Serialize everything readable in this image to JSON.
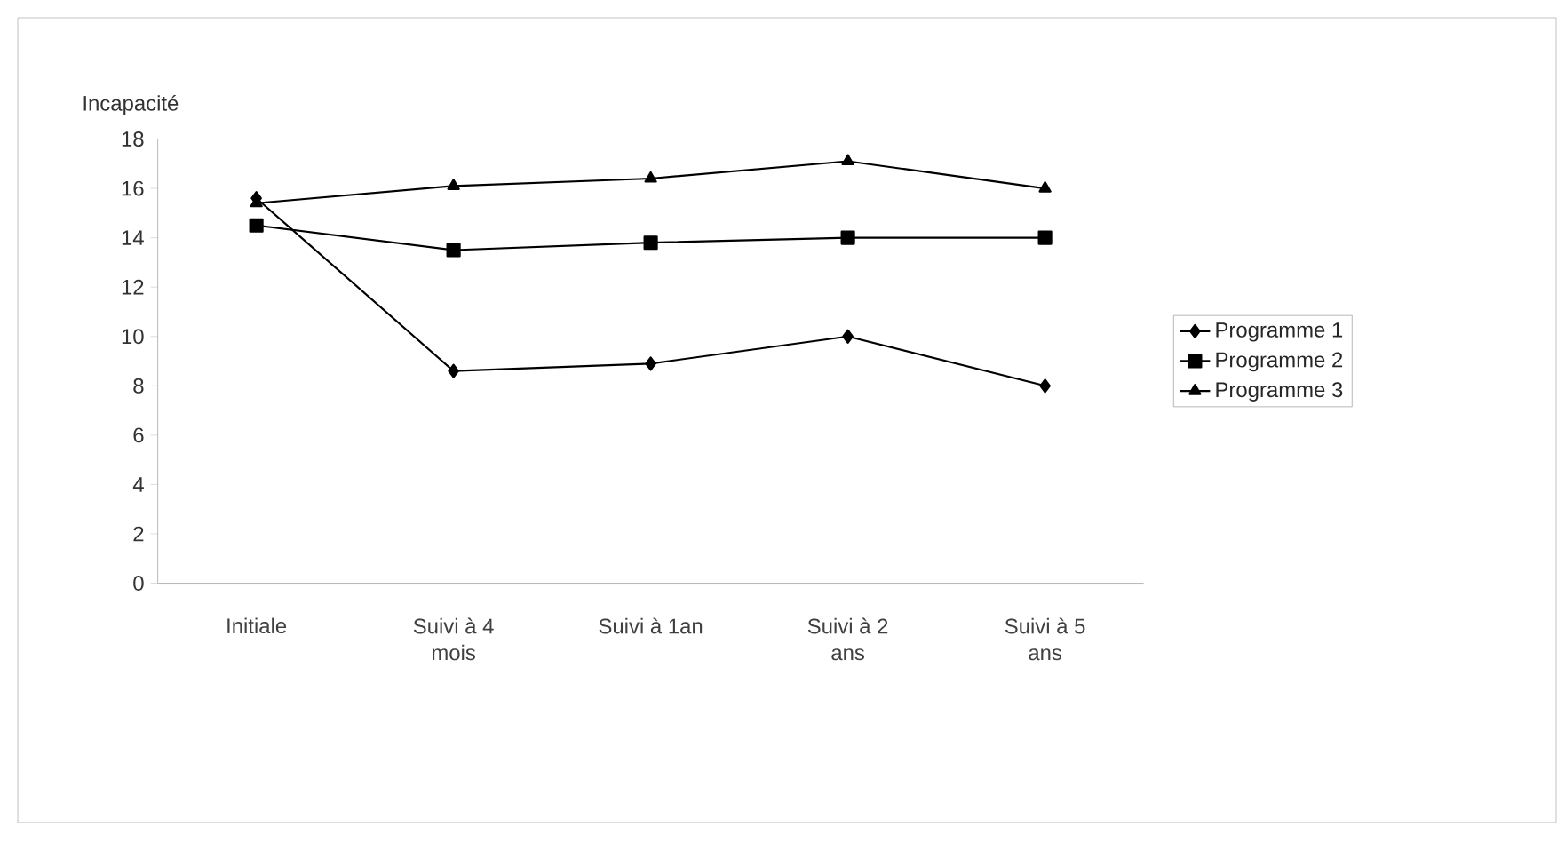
{
  "chart_data": {
    "type": "line",
    "ylabel": "Incapacité",
    "categories": [
      "Initiale",
      "Suivi à 4 mois",
      "Suivi à 1an",
      "Suivi à 2 ans",
      "Suivi à 5 ans"
    ],
    "series": [
      {
        "name": "Programme 1",
        "color": "#000000",
        "marker": "diamond",
        "values": [
          15.6,
          8.6,
          8.9,
          10,
          8
        ]
      },
      {
        "name": "Programme 2",
        "color": "#000000",
        "marker": "square",
        "values": [
          14.5,
          13.5,
          13.8,
          14,
          14
        ]
      },
      {
        "name": "Programme 3",
        "color": "#000000",
        "marker": "triangle",
        "values": [
          15.4,
          16.1,
          16.4,
          17.1,
          16
        ]
      }
    ],
    "ylim": [
      0,
      18
    ],
    "yticks": [
      0,
      2,
      4,
      6,
      8,
      10,
      12,
      14,
      16,
      18
    ],
    "grid": false,
    "legend": "right",
    "line_style": "solid"
  }
}
